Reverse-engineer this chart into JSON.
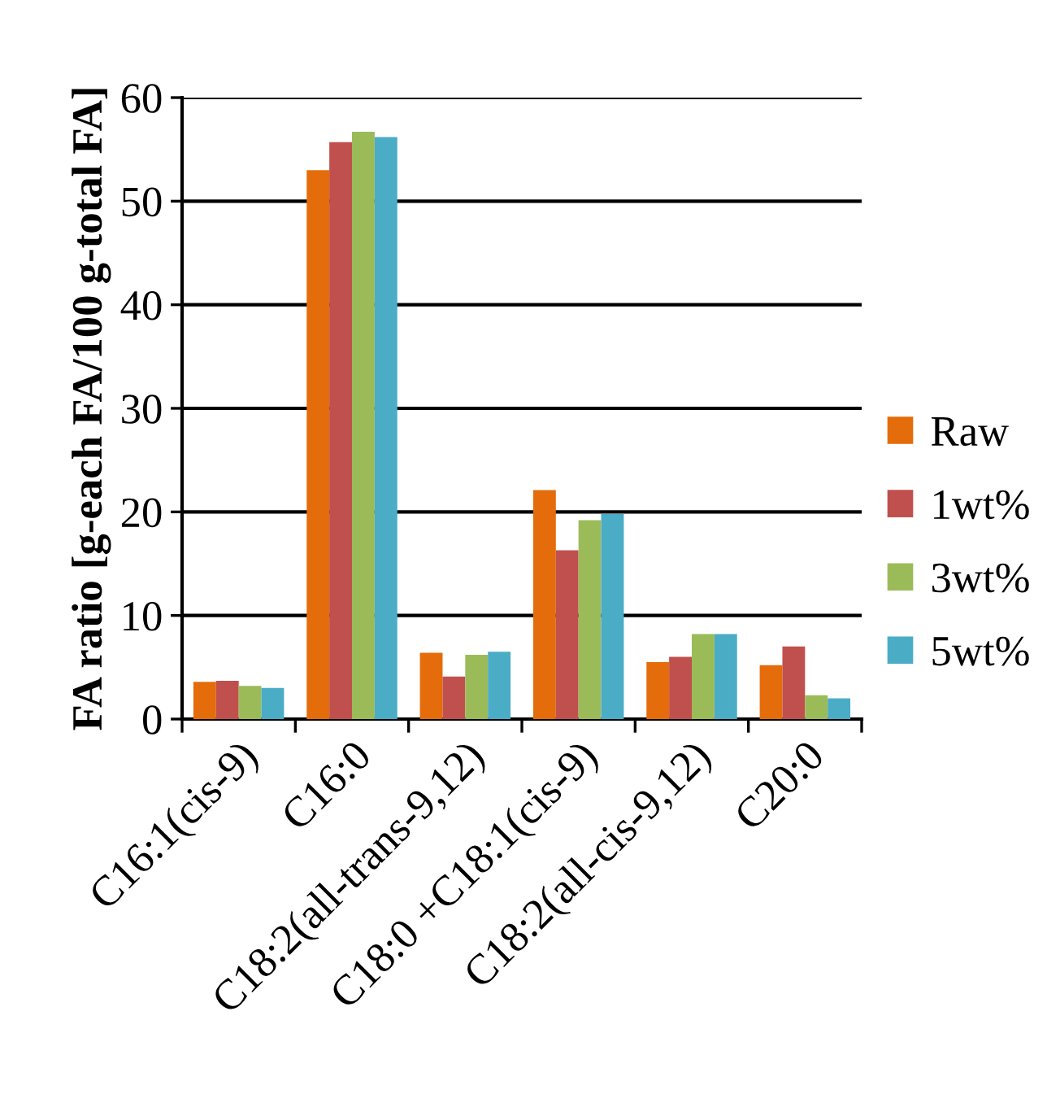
{
  "chart_data": {
    "type": "bar",
    "ylabel": "FA ratio [g-each FA/100 g-total FA]",
    "categories": [
      "C16:1(cis-9)",
      "C16:0",
      "C18:2(all-trans-9,12)",
      "C18:0 +C18:1(cis-9)",
      "C18:2(all-cis-9,12)",
      "C20:0"
    ],
    "series": [
      {
        "name": "Raw",
        "color": "#e46c0a",
        "values": [
          3.6,
          53.0,
          6.4,
          22.1,
          5.5,
          5.2
        ]
      },
      {
        "name": "1wt%",
        "color": "#c0504d",
        "values": [
          3.7,
          55.7,
          4.1,
          16.3,
          6.0,
          7.0
        ]
      },
      {
        "name": "3wt%",
        "color": "#9bbb59",
        "values": [
          3.2,
          56.7,
          6.2,
          19.2,
          8.2,
          2.3
        ]
      },
      {
        "name": "5wt%",
        "color": "#4bacc6",
        "values": [
          3.0,
          56.2,
          6.5,
          19.8,
          8.2,
          2.0
        ]
      }
    ],
    "ylim": [
      0,
      60
    ],
    "yticks": [
      0,
      10,
      20,
      30,
      40,
      50,
      60
    ],
    "grid": "y",
    "legend": "right"
  }
}
